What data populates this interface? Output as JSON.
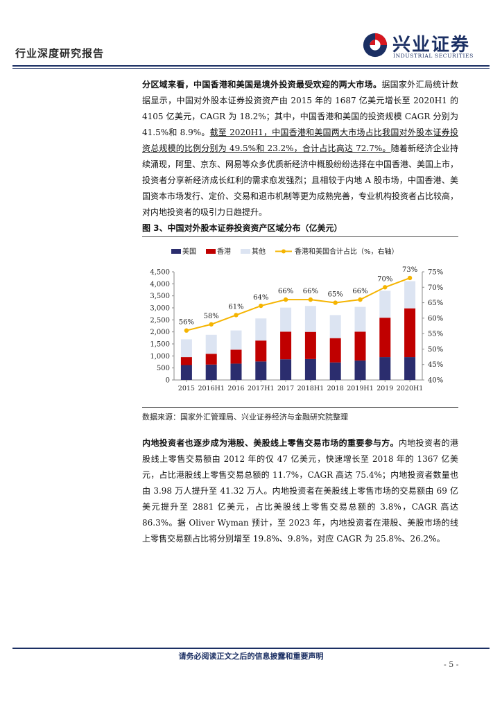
{
  "header": {
    "section_label": "行业深度研究报告",
    "logo_cn": "兴业证券",
    "logo_en": "INDUSTRIAL SECURITIES"
  },
  "para1": {
    "bold_lead": "分区域来看，中国香港和美国是境外投资最受欢迎的两大市场。",
    "text_a": "据国家外汇局统计数据显示，中国对外股本证券投资资产由 2015 年的 1687 亿美元增长至 2020H1 的 4105 亿美元，CAGR 为 18.2%；其中，中国香港和美国的投资规模 CAGR 分别为 41.5%和 8.9%。",
    "underlined": "截至 2020H1，中国香港和美国两大市场占比我国对外股本证券投资总规模的比例分别为 49.5%和 23.2%，合计占比高达 72.7%。",
    "text_b": "随着新经济企业持续涌现，阿里、京东、网易等众多优质新经济中概股纷纷选择在中国香港、美国上市，投资者分享新经济成长红利的需求愈发强烈；且相较于内地 A 股市场，中国香港、美国资本市场发行、定价、交易和退市机制等更为成熟完善，专业机构投资者占比较高，对内地投资者的吸引力日趋提升。"
  },
  "figure": {
    "title": "图 3、中国对外股本证券投资资产区域分布（亿美元）",
    "source": "数据来源：国家外汇管理局、兴业证券经济与金融研究院整理"
  },
  "chart_data": {
    "type": "bar",
    "stacked": true,
    "categories": [
      "2015",
      "2016H1",
      "2016",
      "2017H1",
      "2017",
      "2018H1",
      "2018",
      "2019H1",
      "2019",
      "2020H1"
    ],
    "series": [
      {
        "name": "美国",
        "values": [
          620,
          640,
          680,
          770,
          860,
          870,
          730,
          810,
          950,
          950
        ],
        "color": "#2b2d6e"
      },
      {
        "name": "香港",
        "values": [
          330,
          450,
          580,
          870,
          1150,
          1130,
          1010,
          1200,
          1640,
          2030
        ],
        "color": "#c00000"
      },
      {
        "name": "其他",
        "values": [
          740,
          790,
          800,
          920,
          1000,
          1080,
          960,
          1030,
          1120,
          1130
        ],
        "color": "#dce4f2"
      }
    ],
    "line_series": {
      "name": "香港和美国合计占比（%，右轴）",
      "values": [
        56,
        58,
        61,
        64,
        66,
        66,
        65,
        66,
        70,
        73
      ],
      "labels": [
        "56%",
        "58%",
        "61%",
        "64%",
        "66%",
        "66%",
        "65%",
        "66%",
        "70%",
        "73%"
      ],
      "color": "#f5b400"
    },
    "y_left": {
      "min": 0,
      "max": 4500,
      "ticks": [
        "0",
        "500",
        "1,000",
        "1,500",
        "2,000",
        "2,500",
        "3,000",
        "3,500",
        "4,000",
        "4,500"
      ]
    },
    "y_right": {
      "min": 40,
      "max": 75,
      "ticks": [
        "40%",
        "45%",
        "50%",
        "55%",
        "60%",
        "65%",
        "70%",
        "75%"
      ]
    },
    "legend_position": "top",
    "grid": false
  },
  "para2": {
    "bold_lead": "内地投资者也逐步成为港股、美股线上零售交易市场的重要参与方。",
    "text": "内地投资者的港股线上零售交易额由 2012 年的仅 47 亿美元，快速增长至 2018 年的 1367 亿美元，占比港股线上零售交易总额的 11.7%，CAGR 高达 75.4%；内地投资者数量也由 3.98 万人提升至 41.32 万人。内地投资者在美股线上零售市场的交易额由 69 亿美元提升至 2881 亿美元，占比美股线上零售交易总额的 3.8%，CAGR 高达 86.3%。据 Oliver Wyman 预计，至 2023 年，内地投资者在港股、美股市场的线上零售交易额占比将分别增至 19.8%、9.8%，对应 CAGR 为 25.8%、26.2%。"
  },
  "footer": {
    "disclaimer": "请务必阅读正文之后的信息披露和重要声明",
    "page": "- 5 -"
  }
}
